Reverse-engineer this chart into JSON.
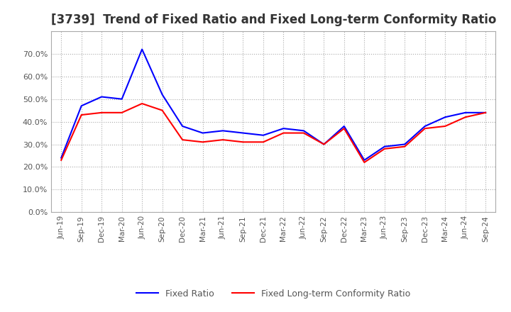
{
  "title": "[3739]  Trend of Fixed Ratio and Fixed Long-term Conformity Ratio",
  "x_labels": [
    "Jun-19",
    "Sep-19",
    "Dec-19",
    "Mar-20",
    "Jun-20",
    "Sep-20",
    "Dec-20",
    "Mar-21",
    "Jun-21",
    "Sep-21",
    "Dec-21",
    "Mar-22",
    "Jun-22",
    "Sep-22",
    "Dec-22",
    "Mar-23",
    "Jun-23",
    "Sep-23",
    "Dec-23",
    "Mar-24",
    "Jun-24",
    "Sep-24"
  ],
  "fixed_ratio": [
    24.0,
    47.0,
    51.0,
    50.0,
    72.0,
    52.0,
    38.0,
    35.0,
    36.0,
    35.0,
    34.0,
    37.0,
    36.0,
    30.0,
    38.0,
    23.0,
    29.0,
    30.0,
    38.0,
    42.0,
    44.0,
    44.0
  ],
  "fixed_lt_ratio": [
    23.0,
    43.0,
    44.0,
    44.0,
    48.0,
    45.0,
    32.0,
    31.0,
    32.0,
    31.0,
    31.0,
    35.0,
    35.0,
    30.0,
    37.0,
    22.0,
    28.0,
    29.0,
    37.0,
    38.0,
    42.0,
    44.0
  ],
  "fixed_ratio_color": "#0000ff",
  "fixed_lt_ratio_color": "#ff0000",
  "ylim": [
    0,
    80
  ],
  "yticks": [
    0,
    10,
    20,
    30,
    40,
    50,
    60,
    70
  ],
  "background_color": "#ffffff",
  "grid_color": "#aaaaaa",
  "title_fontsize": 12,
  "legend_labels": [
    "Fixed Ratio",
    "Fixed Long-term Conformity Ratio"
  ]
}
